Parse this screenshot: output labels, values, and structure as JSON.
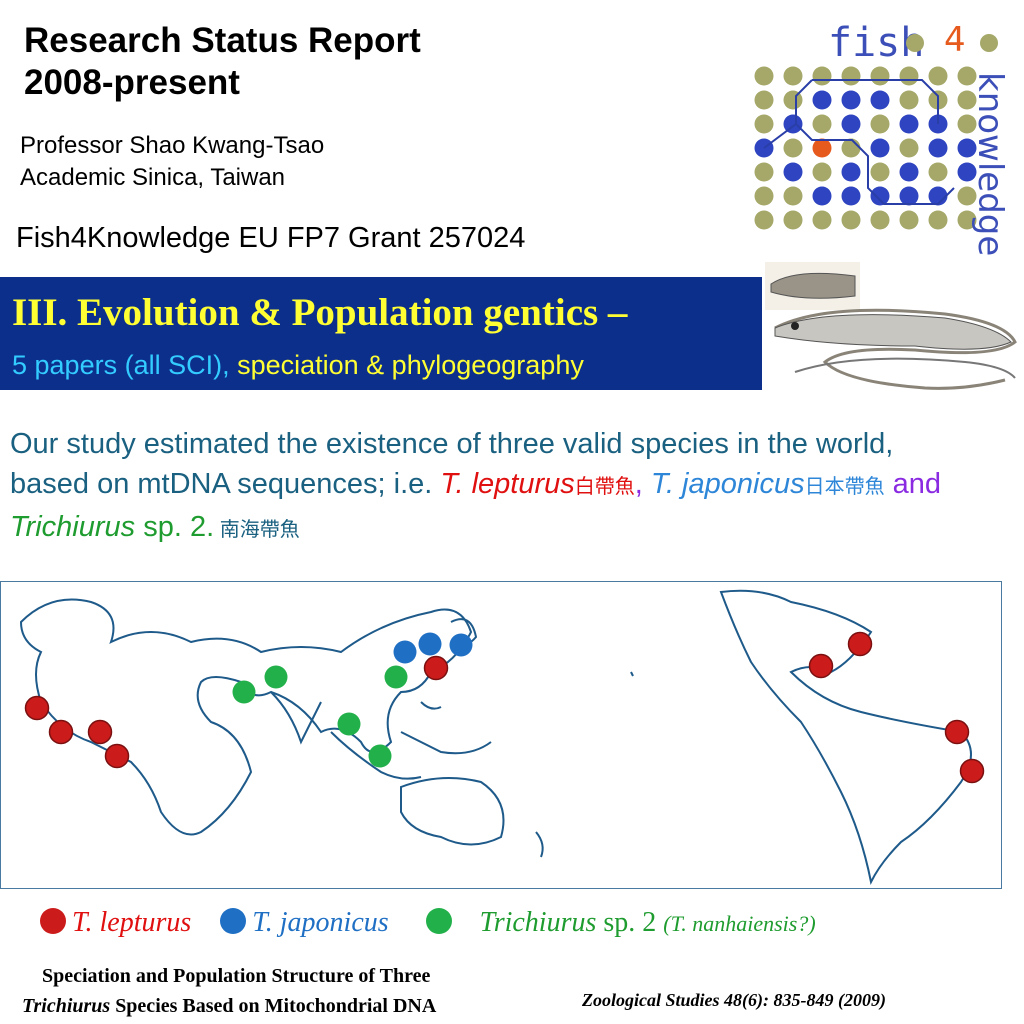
{
  "header": {
    "title_line1": "Research Status Report",
    "title_line2": "2008-present",
    "prof_line1": "Professor Shao Kwang-Tsao",
    "prof_line2": "Academic Sinica, Taiwan",
    "grant": "Fish4Knowledge EU FP7 Grant 257024"
  },
  "logo": {
    "word1": "fish",
    "number": "4",
    "word2": "knowledge"
  },
  "banner": {
    "title": "III. Evolution & Population gentics –",
    "sub_part1": "5 papers (all SCI),",
    "sub_part2": " speciation & phylogeography"
  },
  "study": {
    "text1": "Our study estimated the existence of three valid species in the world, based on mtDNA sequences; i.e. ",
    "sp1": "T. lepturus",
    "sp1_cjk": "白帶魚",
    "comma": ", ",
    "sp2": "T. japonicus",
    "sp2_cjk": "日本帶魚",
    "and": " and ",
    "sp3_italic": "Trichiurus",
    "sp3_rest": " sp. 2.",
    "sp3_cjk": " 南海帶魚"
  },
  "legend": {
    "l1": "T. lepturus",
    "l2": "T. japonicus",
    "l3_italic": "Trichiurus",
    "l3_rest": " sp. 2 ",
    "l3_paren": "(T. nanhaiensis?)"
  },
  "paper": {
    "line1": "Speciation and Population Structure of Three",
    "line2_italic": "Trichiurus",
    "line2_rest": " Species Based on Mitochondrial DNA",
    "journal": "Zoological Studies 48(6): 835-849 (2009)"
  },
  "colors": {
    "lepturus": "#cc1b1b",
    "japonicus": "#1f6fc4",
    "sp2": "#22b04a",
    "banner": "#0d2f8c"
  }
}
